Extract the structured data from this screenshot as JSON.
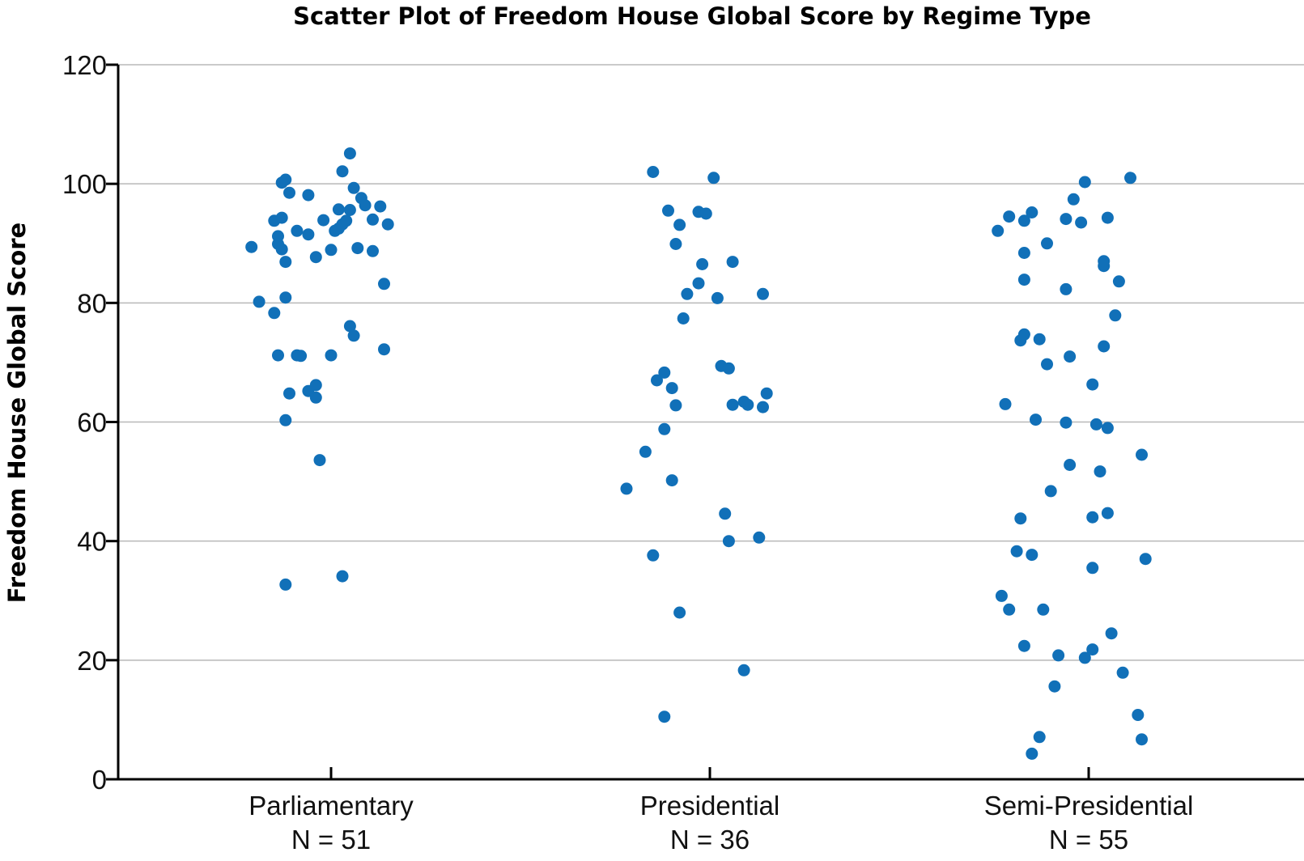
{
  "chart_data": {
    "type": "scatter",
    "title": "Scatter Plot of Freedom House Global Score by Regime Type",
    "ylabel": "Freedom House Global Score",
    "xlabel": "",
    "ylim": [
      0,
      120
    ],
    "yticks": [
      0,
      20,
      40,
      60,
      80,
      100,
      120
    ],
    "grid": true,
    "point_color": "#1170b8",
    "categories": [
      "Parliamentary",
      "Presidential",
      "Semi-Presidential"
    ],
    "category_notes": [
      "N = 51",
      "N = 36",
      "N = 55"
    ],
    "series": [
      {
        "category": "Parliamentary",
        "points": [
          {
            "x": -0.21,
            "y": 89.4
          },
          {
            "x": -0.19,
            "y": 80.2
          },
          {
            "x": -0.15,
            "y": 93.8
          },
          {
            "x": -0.14,
            "y": 91.2
          },
          {
            "x": -0.14,
            "y": 89.9
          },
          {
            "x": -0.13,
            "y": 89.0
          },
          {
            "x": -0.13,
            "y": 94.3
          },
          {
            "x": -0.13,
            "y": 100.2
          },
          {
            "x": -0.12,
            "y": 100.7
          },
          {
            "x": -0.12,
            "y": 86.9
          },
          {
            "x": -0.12,
            "y": 80.9
          },
          {
            "x": -0.11,
            "y": 98.5
          },
          {
            "x": -0.15,
            "y": 78.3
          },
          {
            "x": -0.14,
            "y": 71.2
          },
          {
            "x": -0.11,
            "y": 64.8
          },
          {
            "x": -0.09,
            "y": 71.2
          },
          {
            "x": -0.12,
            "y": 60.3
          },
          {
            "x": -0.12,
            "y": 32.7
          },
          {
            "x": -0.09,
            "y": 92.1
          },
          {
            "x": -0.06,
            "y": 98.1
          },
          {
            "x": -0.06,
            "y": 91.5
          },
          {
            "x": -0.06,
            "y": 65.2
          },
          {
            "x": -0.04,
            "y": 87.7
          },
          {
            "x": -0.04,
            "y": 64.1
          },
          {
            "x": -0.04,
            "y": 66.2
          },
          {
            "x": -0.03,
            "y": 53.6
          },
          {
            "x": -0.02,
            "y": 93.9
          },
          {
            "x": 0.0,
            "y": 88.9
          },
          {
            "x": 0.0,
            "y": 71.2
          },
          {
            "x": 0.01,
            "y": 92.1
          },
          {
            "x": 0.02,
            "y": 95.7
          },
          {
            "x": 0.02,
            "y": 92.5
          },
          {
            "x": 0.03,
            "y": 102.1
          },
          {
            "x": 0.03,
            "y": 93.2
          },
          {
            "x": 0.04,
            "y": 93.8
          },
          {
            "x": 0.03,
            "y": 34.1
          },
          {
            "x": 0.05,
            "y": 105.1
          },
          {
            "x": 0.05,
            "y": 76.1
          },
          {
            "x": 0.05,
            "y": 95.6
          },
          {
            "x": 0.06,
            "y": 99.3
          },
          {
            "x": 0.06,
            "y": 74.5
          },
          {
            "x": 0.07,
            "y": 89.2
          },
          {
            "x": 0.08,
            "y": 97.6
          },
          {
            "x": 0.09,
            "y": 96.4
          },
          {
            "x": 0.11,
            "y": 94.0
          },
          {
            "x": 0.11,
            "y": 88.7
          },
          {
            "x": 0.13,
            "y": 96.2
          },
          {
            "x": 0.14,
            "y": 83.2
          },
          {
            "x": 0.15,
            "y": 93.2
          },
          {
            "x": 0.14,
            "y": 72.2
          },
          {
            "x": -0.08,
            "y": 71.1
          }
        ]
      },
      {
        "category": "Presidential",
        "points": [
          {
            "x": -0.22,
            "y": 48.8
          },
          {
            "x": -0.17,
            "y": 55.0
          },
          {
            "x": -0.15,
            "y": 102.0
          },
          {
            "x": -0.15,
            "y": 37.6
          },
          {
            "x": -0.14,
            "y": 67.0
          },
          {
            "x": -0.12,
            "y": 58.8
          },
          {
            "x": -0.12,
            "y": 68.3
          },
          {
            "x": -0.12,
            "y": 10.5
          },
          {
            "x": -0.11,
            "y": 95.5
          },
          {
            "x": -0.1,
            "y": 65.7
          },
          {
            "x": -0.1,
            "y": 50.2
          },
          {
            "x": -0.09,
            "y": 62.8
          },
          {
            "x": -0.09,
            "y": 89.9
          },
          {
            "x": -0.08,
            "y": 93.1
          },
          {
            "x": -0.08,
            "y": 28.0
          },
          {
            "x": -0.07,
            "y": 77.4
          },
          {
            "x": -0.06,
            "y": 81.5
          },
          {
            "x": -0.03,
            "y": 95.3
          },
          {
            "x": -0.03,
            "y": 83.3
          },
          {
            "x": -0.02,
            "y": 86.5
          },
          {
            "x": -0.01,
            "y": 95.0
          },
          {
            "x": 0.01,
            "y": 101.0
          },
          {
            "x": 0.02,
            "y": 80.8
          },
          {
            "x": 0.03,
            "y": 69.4
          },
          {
            "x": 0.04,
            "y": 44.6
          },
          {
            "x": 0.05,
            "y": 69.0
          },
          {
            "x": 0.05,
            "y": 40.0
          },
          {
            "x": 0.06,
            "y": 86.9
          },
          {
            "x": 0.06,
            "y": 62.9
          },
          {
            "x": 0.09,
            "y": 18.3
          },
          {
            "x": 0.09,
            "y": 63.4
          },
          {
            "x": 0.1,
            "y": 62.9
          },
          {
            "x": 0.13,
            "y": 40.6
          },
          {
            "x": 0.14,
            "y": 81.5
          },
          {
            "x": 0.14,
            "y": 62.5
          },
          {
            "x": 0.15,
            "y": 64.8
          }
        ]
      },
      {
        "category": "Semi-Presidential",
        "points": [
          {
            "x": -0.24,
            "y": 92.1
          },
          {
            "x": -0.23,
            "y": 30.8
          },
          {
            "x": -0.22,
            "y": 63.0
          },
          {
            "x": -0.21,
            "y": 94.5
          },
          {
            "x": -0.21,
            "y": 28.5
          },
          {
            "x": -0.19,
            "y": 38.3
          },
          {
            "x": -0.18,
            "y": 73.7
          },
          {
            "x": -0.18,
            "y": 43.8
          },
          {
            "x": -0.17,
            "y": 88.4
          },
          {
            "x": -0.17,
            "y": 74.7
          },
          {
            "x": -0.17,
            "y": 83.9
          },
          {
            "x": -0.17,
            "y": 22.4
          },
          {
            "x": -0.17,
            "y": 93.8
          },
          {
            "x": -0.15,
            "y": 95.2
          },
          {
            "x": -0.15,
            "y": 37.7
          },
          {
            "x": -0.15,
            "y": 4.3
          },
          {
            "x": -0.14,
            "y": 60.4
          },
          {
            "x": -0.13,
            "y": 73.9
          },
          {
            "x": -0.13,
            "y": 7.1
          },
          {
            "x": -0.12,
            "y": 28.5
          },
          {
            "x": -0.11,
            "y": 69.7
          },
          {
            "x": -0.11,
            "y": 90.0
          },
          {
            "x": -0.1,
            "y": 48.4
          },
          {
            "x": -0.09,
            "y": 15.6
          },
          {
            "x": -0.08,
            "y": 20.8
          },
          {
            "x": -0.06,
            "y": 94.1
          },
          {
            "x": -0.06,
            "y": 59.9
          },
          {
            "x": -0.06,
            "y": 82.3
          },
          {
            "x": -0.05,
            "y": 71.0
          },
          {
            "x": -0.05,
            "y": 52.8
          },
          {
            "x": -0.04,
            "y": 97.4
          },
          {
            "x": -0.02,
            "y": 93.5
          },
          {
            "x": -0.01,
            "y": 20.4
          },
          {
            "x": -0.01,
            "y": 100.3
          },
          {
            "x": 0.01,
            "y": 66.3
          },
          {
            "x": 0.01,
            "y": 44.0
          },
          {
            "x": 0.01,
            "y": 35.5
          },
          {
            "x": 0.01,
            "y": 21.8
          },
          {
            "x": 0.02,
            "y": 59.6
          },
          {
            "x": 0.03,
            "y": 51.7
          },
          {
            "x": 0.04,
            "y": 86.2
          },
          {
            "x": 0.04,
            "y": 72.7
          },
          {
            "x": 0.04,
            "y": 87.0
          },
          {
            "x": 0.05,
            "y": 59.0
          },
          {
            "x": 0.05,
            "y": 94.3
          },
          {
            "x": 0.05,
            "y": 44.7
          },
          {
            "x": 0.06,
            "y": 24.5
          },
          {
            "x": 0.07,
            "y": 77.9
          },
          {
            "x": 0.08,
            "y": 83.6
          },
          {
            "x": 0.09,
            "y": 17.9
          },
          {
            "x": 0.11,
            "y": 101.0
          },
          {
            "x": 0.13,
            "y": 10.8
          },
          {
            "x": 0.14,
            "y": 54.5
          },
          {
            "x": 0.14,
            "y": 6.7
          },
          {
            "x": 0.15,
            "y": 37.0
          }
        ]
      }
    ]
  }
}
